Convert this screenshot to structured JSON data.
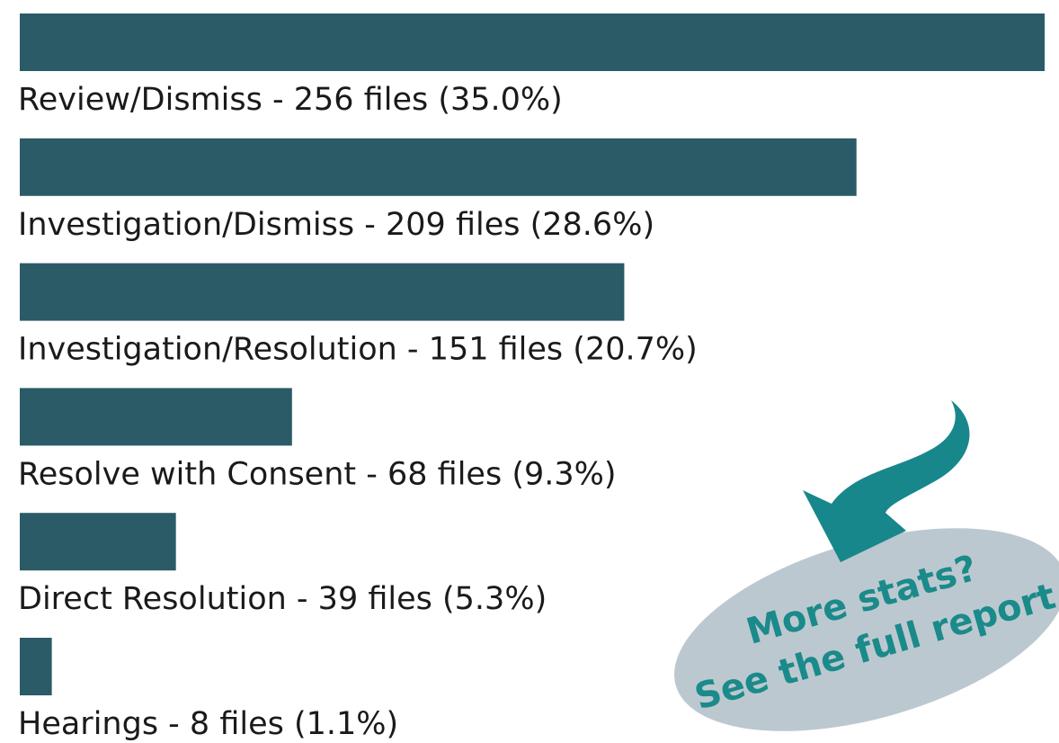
{
  "chart_data": {
    "type": "hbar",
    "categories": [
      "Review/Dismiss - 256 files (35.0%)",
      "Investigation/Dismiss - 209 files (28.6%)",
      "Investigation/Resolution - 151 files (20.7%)",
      "Resolve with Consent - 68 files (9.3%)",
      "Direct Resolution - 39 files (5.3%)",
      "Hearings - 8 files (1.1%)"
    ],
    "values": [
      256,
      209,
      151,
      68,
      39,
      8
    ],
    "color": "#2a5b66"
  },
  "callout": {
    "lines": [
      "More stats?",
      "See the full report"
    ]
  }
}
